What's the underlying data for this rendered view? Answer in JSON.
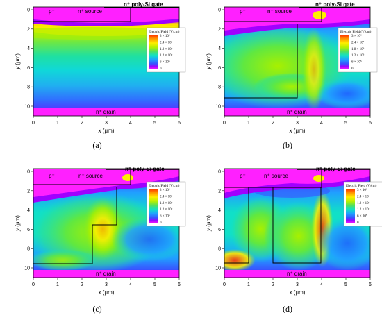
{
  "figure": {
    "axes": {
      "x_label_var": "x",
      "y_label_var": "y",
      "unit": " (μm)",
      "x_ticks": [
        "0",
        "1",
        "2",
        "3",
        "4",
        "5",
        "6"
      ],
      "y_ticks": [
        "0",
        "2",
        "4",
        "6",
        "8",
        "10"
      ]
    },
    "colorbar": {
      "title": "Electric Field (V/cm)",
      "ticks": [
        "3 × 10⁶",
        "2.4 × 10⁶",
        "1.8 × 10⁶",
        "1.2 × 10⁶",
        "6 × 10⁵",
        "0"
      ],
      "colors": [
        "#ff2a00",
        "#ff9900",
        "#ffee00",
        "#b8f000",
        "#55e05a",
        "#10e0c8",
        "#20a0ff",
        "#3a50ff",
        "#a000ff",
        "#ff20ff"
      ]
    },
    "regions": {
      "p_plus": "p⁺",
      "n_source": "n⁺ source",
      "gate": "n⁺ poly-Si gate",
      "drain": "n⁺ drain"
    },
    "panels": [
      {
        "id": "a",
        "caption": "(a)"
      },
      {
        "id": "b",
        "caption": "(b)"
      },
      {
        "id": "c",
        "caption": "(c)"
      },
      {
        "id": "d",
        "caption": "(d)"
      }
    ],
    "colors": {
      "drain": "#ff20ff",
      "top_band": "#ff20ff",
      "base_cyan": "#10e0c8"
    }
  }
}
